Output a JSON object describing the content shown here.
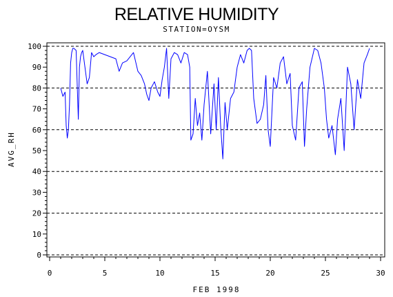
{
  "chart_data": {
    "type": "line",
    "title": "RELATIVE HUMIDITY",
    "subtitle": "STATION=OYSM",
    "xlabel": "FEB 1998",
    "ylabel": "AVG_RH",
    "xlim": [
      0,
      30
    ],
    "ylim": [
      0,
      100
    ],
    "x_ticks": [
      0,
      5,
      10,
      15,
      20,
      25,
      30
    ],
    "y_ticks": [
      0,
      10,
      20,
      30,
      40,
      50,
      60,
      70,
      80,
      90,
      100
    ],
    "reference_lines_y": [
      0,
      20,
      40,
      60,
      80,
      100
    ],
    "grid": "dashed horizontal reference lines",
    "series_color": "#0000ff",
    "series": [
      {
        "x": [
          1.0,
          1.2,
          1.4,
          1.5,
          1.6,
          1.7,
          1.8,
          1.9,
          2.0,
          2.1,
          2.2,
          2.4,
          2.6,
          2.7,
          2.8,
          2.9,
          3.0,
          3.2,
          3.4,
          3.6,
          3.8,
          4.0,
          4.2,
          4.5,
          5.0,
          5.5,
          6.0,
          6.3,
          6.6,
          7.0,
          7.3,
          7.6,
          8.0,
          8.3,
          8.6,
          8.8,
          9.0,
          9.2,
          9.5,
          9.8,
          10.0,
          10.2,
          10.4,
          10.6,
          10.8,
          11.0,
          11.3,
          11.6,
          11.9,
          12.2,
          12.5,
          12.7,
          12.8,
          13.0,
          13.2,
          13.4,
          13.6,
          13.8,
          14.0,
          14.3,
          14.6,
          14.9,
          15.1,
          15.3,
          15.5,
          15.7,
          15.9,
          16.1,
          16.4,
          16.7,
          17.0,
          17.3,
          17.6,
          17.9,
          18.1,
          18.3,
          18.5,
          18.8,
          19.1,
          19.4,
          19.6,
          19.8,
          20.0,
          20.3,
          20.6,
          20.9,
          21.2,
          21.5,
          21.8,
          22.0,
          22.3,
          22.6,
          22.9,
          23.1,
          23.3,
          23.6,
          24.0,
          24.3,
          24.6,
          24.9,
          25.1,
          25.3,
          25.6,
          25.9,
          26.1,
          26.4,
          26.7,
          27.0,
          27.3,
          27.6,
          27.9,
          28.2,
          28.5,
          28.8,
          29.0
        ],
        "y": [
          80,
          76,
          78,
          62,
          56,
          60,
          72,
          92,
          97,
          99,
          99,
          98,
          65,
          90,
          95,
          97,
          98,
          90,
          82,
          85,
          97,
          95,
          96,
          97,
          96,
          95,
          94,
          88,
          92,
          93,
          95,
          97,
          88,
          86,
          82,
          77,
          74,
          80,
          83,
          78,
          76,
          84,
          90,
          99,
          75,
          94,
          97,
          96,
          92,
          97,
          96,
          90,
          55,
          58,
          75,
          62,
          68,
          55,
          72,
          88,
          58,
          82,
          60,
          85,
          62,
          46,
          73,
          60,
          75,
          78,
          90,
          96,
          92,
          98,
          99,
          98,
          75,
          63,
          65,
          72,
          86,
          60,
          52,
          85,
          80,
          92,
          95,
          82,
          87,
          62,
          55,
          80,
          83,
          52,
          70,
          90,
          99,
          98,
          92,
          80,
          65,
          56,
          62,
          48,
          65,
          75,
          50,
          90,
          82,
          60,
          84,
          75,
          92,
          96,
          99
        ]
      }
    ]
  }
}
